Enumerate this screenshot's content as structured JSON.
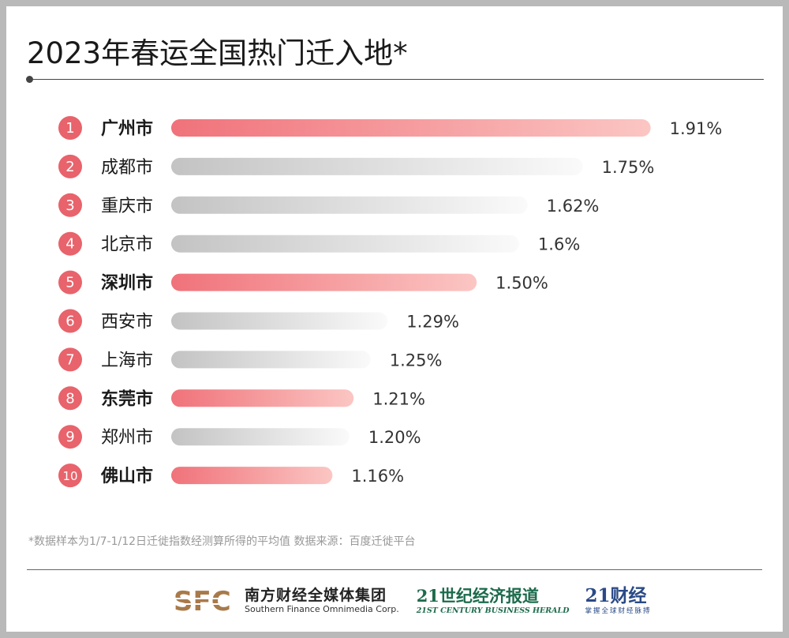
{
  "title": "2023年春运全国热门迁入地*",
  "chart_data": {
    "type": "bar",
    "orientation": "horizontal",
    "title": "2023年春运全国热门迁入地*",
    "categories": [
      "广州市",
      "成都市",
      "重庆市",
      "北京市",
      "深圳市",
      "西安市",
      "上海市",
      "东莞市",
      "郑州市",
      "佛山市"
    ],
    "ranks": [
      "1",
      "2",
      "3",
      "4",
      "5",
      "6",
      "7",
      "8",
      "9",
      "10"
    ],
    "value_labels": [
      "1.91%",
      "1.75%",
      "1.62%",
      "1.6%",
      "1.50%",
      "1.29%",
      "1.25%",
      "1.21%",
      "1.20%",
      "1.16%"
    ],
    "drawn_lengths": [
      1.91,
      1.75,
      1.62,
      1.6,
      1.5,
      1.29,
      1.25,
      1.21,
      1.2,
      1.16
    ],
    "highlighted": [
      true,
      false,
      false,
      false,
      true,
      false,
      false,
      true,
      false,
      true
    ],
    "xlim": [
      0.78,
      1.92
    ],
    "colors": {
      "highlight_start": "#f0727a",
      "highlight_end": "#fbc6c3",
      "normal_start": "#c3c3c3",
      "normal_end": "#fafafa",
      "rank_circle": "#e8636b"
    }
  },
  "footnote": "*数据样本为1/7-1/12日迁徙指数经测算所得的平均值     数据来源：百度迁徙平台",
  "logos": {
    "sfc_mark": "SFC",
    "sfc_cn": "南方财经全媒体集团",
    "sfc_en": "Southern Finance Omnimedia Corp.",
    "herald_cn": "21世纪经济报道",
    "herald_en": "21ST CENTURY BUSINESS HERALD",
    "caijing_cn": "21财经",
    "caijing_sub": "掌握全球财经脉搏"
  }
}
